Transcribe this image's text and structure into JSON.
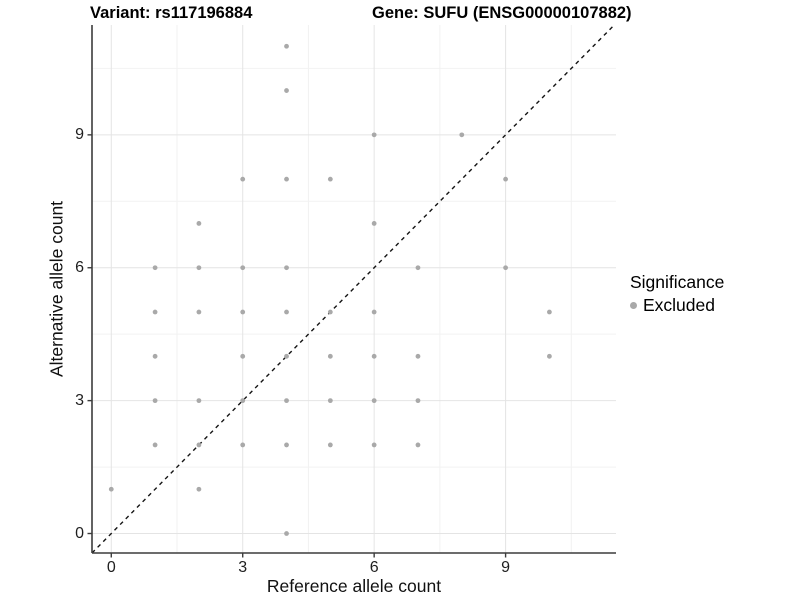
{
  "header": {
    "variant_title": "Variant: rs117196884",
    "gene_title": "Gene: SUFU (ENSG00000107882)"
  },
  "chart_data": {
    "type": "scatter",
    "xlabel": "Reference allele count",
    "ylabel": "Alternative allele count",
    "xlim": [
      -0.44,
      11.52
    ],
    "ylim": [
      -0.44,
      11.48
    ],
    "x_major_ticks": [
      0,
      3,
      6,
      9
    ],
    "y_major_ticks": [
      0,
      3,
      6,
      9
    ],
    "x_minor_gridlines": [
      1.5,
      4.5,
      7.5,
      10.5
    ],
    "y_minor_gridlines": [
      1.5,
      4.5,
      7.5,
      10.5
    ],
    "grid": true,
    "legend_position": "right",
    "identity_line": {
      "style": "dashed",
      "from": [
        -0.44,
        -0.44
      ],
      "to": [
        11.48,
        11.48
      ],
      "color": "#141414"
    },
    "series": [
      {
        "name": "Excluded",
        "marker": "circle",
        "color": "#a9a9a9",
        "points": [
          [
            0,
            1
          ],
          [
            1,
            2
          ],
          [
            1,
            3
          ],
          [
            1,
            4
          ],
          [
            1,
            5
          ],
          [
            1,
            6
          ],
          [
            2,
            1
          ],
          [
            2,
            2
          ],
          [
            2,
            3
          ],
          [
            2,
            5
          ],
          [
            2,
            6
          ],
          [
            2,
            7
          ],
          [
            3,
            2
          ],
          [
            3,
            3
          ],
          [
            3,
            4
          ],
          [
            3,
            5
          ],
          [
            3,
            6
          ],
          [
            3,
            8
          ],
          [
            4,
            0
          ],
          [
            4,
            2
          ],
          [
            4,
            3
          ],
          [
            4,
            4
          ],
          [
            4,
            5
          ],
          [
            4,
            6
          ],
          [
            4,
            8
          ],
          [
            4,
            10
          ],
          [
            4,
            11
          ],
          [
            5,
            2
          ],
          [
            5,
            3
          ],
          [
            5,
            4
          ],
          [
            5,
            5
          ],
          [
            5,
            8
          ],
          [
            6,
            2
          ],
          [
            6,
            3
          ],
          [
            6,
            4
          ],
          [
            6,
            5
          ],
          [
            6,
            7
          ],
          [
            6,
            9
          ],
          [
            7,
            2
          ],
          [
            7,
            3
          ],
          [
            7,
            4
          ],
          [
            7,
            6
          ],
          [
            8,
            9
          ],
          [
            9,
            6
          ],
          [
            9,
            8
          ],
          [
            10,
            4
          ],
          [
            10,
            5
          ]
        ]
      }
    ]
  },
  "legend": {
    "title": "Significance",
    "items": [
      {
        "label": "Excluded",
        "color": "#a9a9a9"
      }
    ]
  },
  "colors": {
    "background": "#ffffff",
    "grid_major": "#e4e4e4",
    "grid_minor": "#f2f2f2",
    "axis_line": "#3c3c3c",
    "tick_label": "#1f1f1f",
    "point": "#a9a9a9"
  }
}
